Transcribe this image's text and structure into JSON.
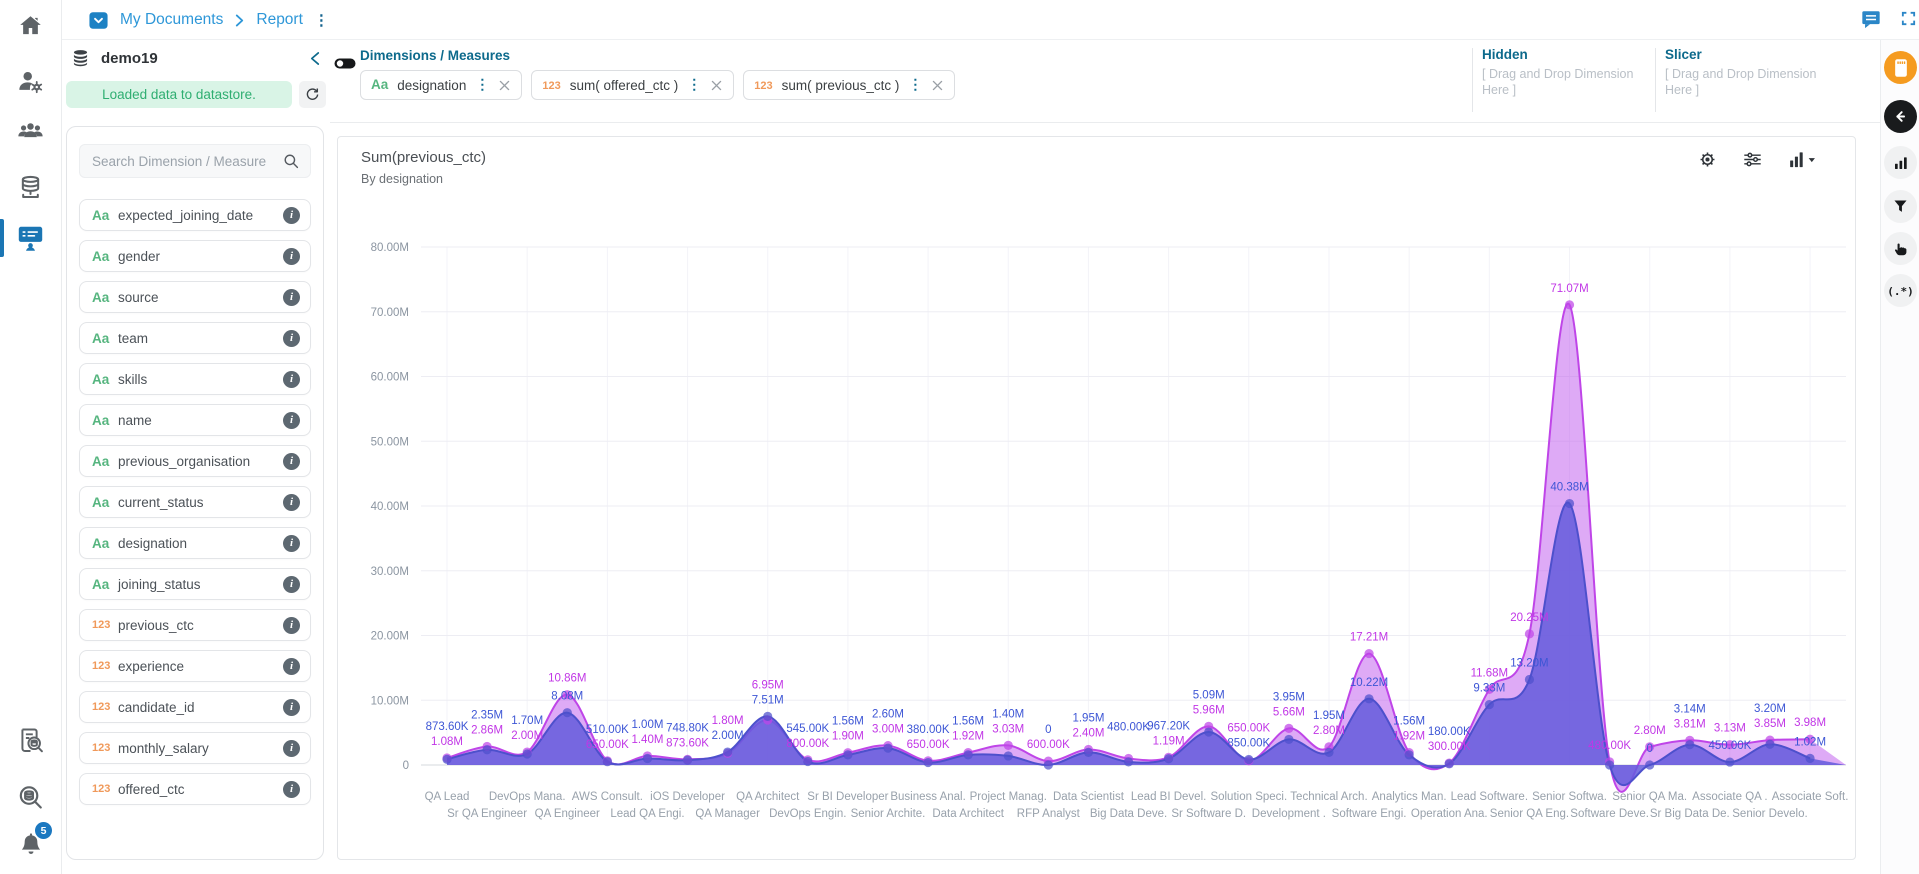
{
  "topbar": {
    "breadcrumb_folder": "My Documents",
    "breadcrumb_page": "Report"
  },
  "left_rail": {
    "items": [
      {
        "name": "home",
        "icon": "home"
      },
      {
        "name": "user-settings",
        "icon": "user-gear"
      },
      {
        "name": "user-groups",
        "icon": "users"
      },
      {
        "name": "datastores",
        "icon": "database"
      },
      {
        "name": "reports",
        "icon": "report",
        "active": true
      },
      {
        "name": "search-log",
        "icon": "book-search"
      },
      {
        "name": "data-search",
        "icon": "db-search"
      },
      {
        "name": "notifications",
        "icon": "bell",
        "badge": "5"
      }
    ]
  },
  "datastore_panel": {
    "title": "demo19",
    "status_message": "Loaded data to datastore.",
    "search_placeholder": "Search Dimension / Measure",
    "fields": [
      {
        "label": "expected_joining_date",
        "type": "text"
      },
      {
        "label": "gender",
        "type": "text"
      },
      {
        "label": "source",
        "type": "text"
      },
      {
        "label": "team",
        "type": "text"
      },
      {
        "label": "skills",
        "type": "text"
      },
      {
        "label": "name",
        "type": "text"
      },
      {
        "label": "previous_organisation",
        "type": "text"
      },
      {
        "label": "current_status",
        "type": "text"
      },
      {
        "label": "designation",
        "type": "text"
      },
      {
        "label": "joining_status",
        "type": "text"
      },
      {
        "label": "previous_ctc",
        "type": "number"
      },
      {
        "label": "experience",
        "type": "number"
      },
      {
        "label": "candidate_id",
        "type": "number"
      },
      {
        "label": "monthly_salary",
        "type": "number"
      },
      {
        "label": "offered_ctc",
        "type": "number"
      }
    ]
  },
  "builder": {
    "section_title": "Dimensions / Measures",
    "chips": [
      {
        "type": "text",
        "label": "designation"
      },
      {
        "type": "number",
        "label": "sum( offered_ctc )"
      },
      {
        "type": "number",
        "label": "sum( previous_ctc )"
      }
    ],
    "hidden_zone": {
      "title": "Hidden",
      "placeholder": "[ Drag and Drop Dimension Here ]"
    },
    "slicer_zone": {
      "title": "Slicer",
      "placeholder": "[ Drag and Drop Dimension Here ]"
    }
  },
  "chart_data": {
    "type": "area",
    "title": "Sum(previous_ctc)",
    "subtitle": "By designation",
    "unit": "millions",
    "ylim": [
      0,
      80
    ],
    "y_ticks": [
      "0",
      "10.00M",
      "20.00M",
      "30.00M",
      "40.00M",
      "50.00M",
      "60.00M",
      "70.00M",
      "80.00M"
    ],
    "grid": true,
    "legend": false,
    "categories": [
      "QA Lead",
      "Sr QA Engineer",
      "DevOps Mana.",
      "QA Engineer",
      "AWS Consult.",
      "Lead QA Engi.",
      "iOS Developer",
      "QA Manager",
      "QA Architect",
      "DevOps Engin.",
      "Sr BI Developer",
      "Senior Archite.",
      "Business Anal.",
      "Data Architect",
      "Project Manag.",
      "RFP Analyst",
      "Data Scientist",
      "Big Data Deve.",
      "Lead BI Devel.",
      "Sr Software D.",
      "Solution Speci.",
      "Development .",
      "Technical Arch.",
      "Software Engi.",
      "Analytics Man.",
      "Operation Ana.",
      "Lead Software.",
      "Senior QA Eng.",
      "Senior Softwa.",
      "Software Deve.",
      "Senior QA Ma.",
      "Sr Big Data De.",
      "Associate QA .",
      "Senior Develo.",
      "Associate Soft."
    ],
    "series": [
      {
        "name": "sum( previous_ctc )",
        "color": "#bf45e8",
        "fill": "rgba(190,85,238,0.5)",
        "label_color": "#c136e6",
        "values": [
          1.08,
          2.86,
          2.0,
          10.86,
          0.65,
          1.4,
          0.8736,
          1.8,
          6.95,
          0.8,
          1.9,
          3.0,
          0.65,
          1.92,
          3.03,
          0.6,
          2.4,
          1.0,
          1.19,
          5.96,
          0.65,
          5.66,
          2.8,
          17.21,
          1.92,
          0.3,
          11.68,
          20.25,
          71.07,
          0.48,
          2.8,
          3.81,
          3.13,
          3.85,
          3.98
        ]
      },
      {
        "name": "sum( offered_ctc )",
        "color": "#4d50cc",
        "fill": "rgba(100,92,220,0.85)",
        "label_color": "#3d56d5",
        "values": [
          0.8736,
          2.35,
          1.7,
          8.08,
          0.51,
          1.0,
          0.7488,
          2.0,
          7.51,
          0.545,
          1.56,
          2.6,
          0.38,
          1.56,
          1.4,
          0,
          1.95,
          0.48,
          0.9672,
          5.09,
          0.85,
          3.95,
          1.95,
          10.22,
          1.56,
          0.18,
          9.33,
          13.2,
          40.38,
          0,
          0,
          3.14,
          0.45,
          3.2,
          1.02
        ]
      }
    ],
    "hidden_labels": [
      {
        "series": 0,
        "index": 17
      },
      {
        "series": 1,
        "index": 29
      }
    ]
  },
  "right_rail": {
    "items": [
      {
        "name": "save",
        "icon": "card",
        "style": "orange"
      },
      {
        "name": "back",
        "icon": "back",
        "style": "dark"
      },
      {
        "name": "chart-list",
        "icon": "bars",
        "style": ""
      },
      {
        "name": "filter",
        "icon": "funnel",
        "style": ""
      },
      {
        "name": "pointer",
        "icon": "hand",
        "style": ""
      },
      {
        "name": "regex",
        "icon": "regex",
        "style": ""
      }
    ]
  }
}
